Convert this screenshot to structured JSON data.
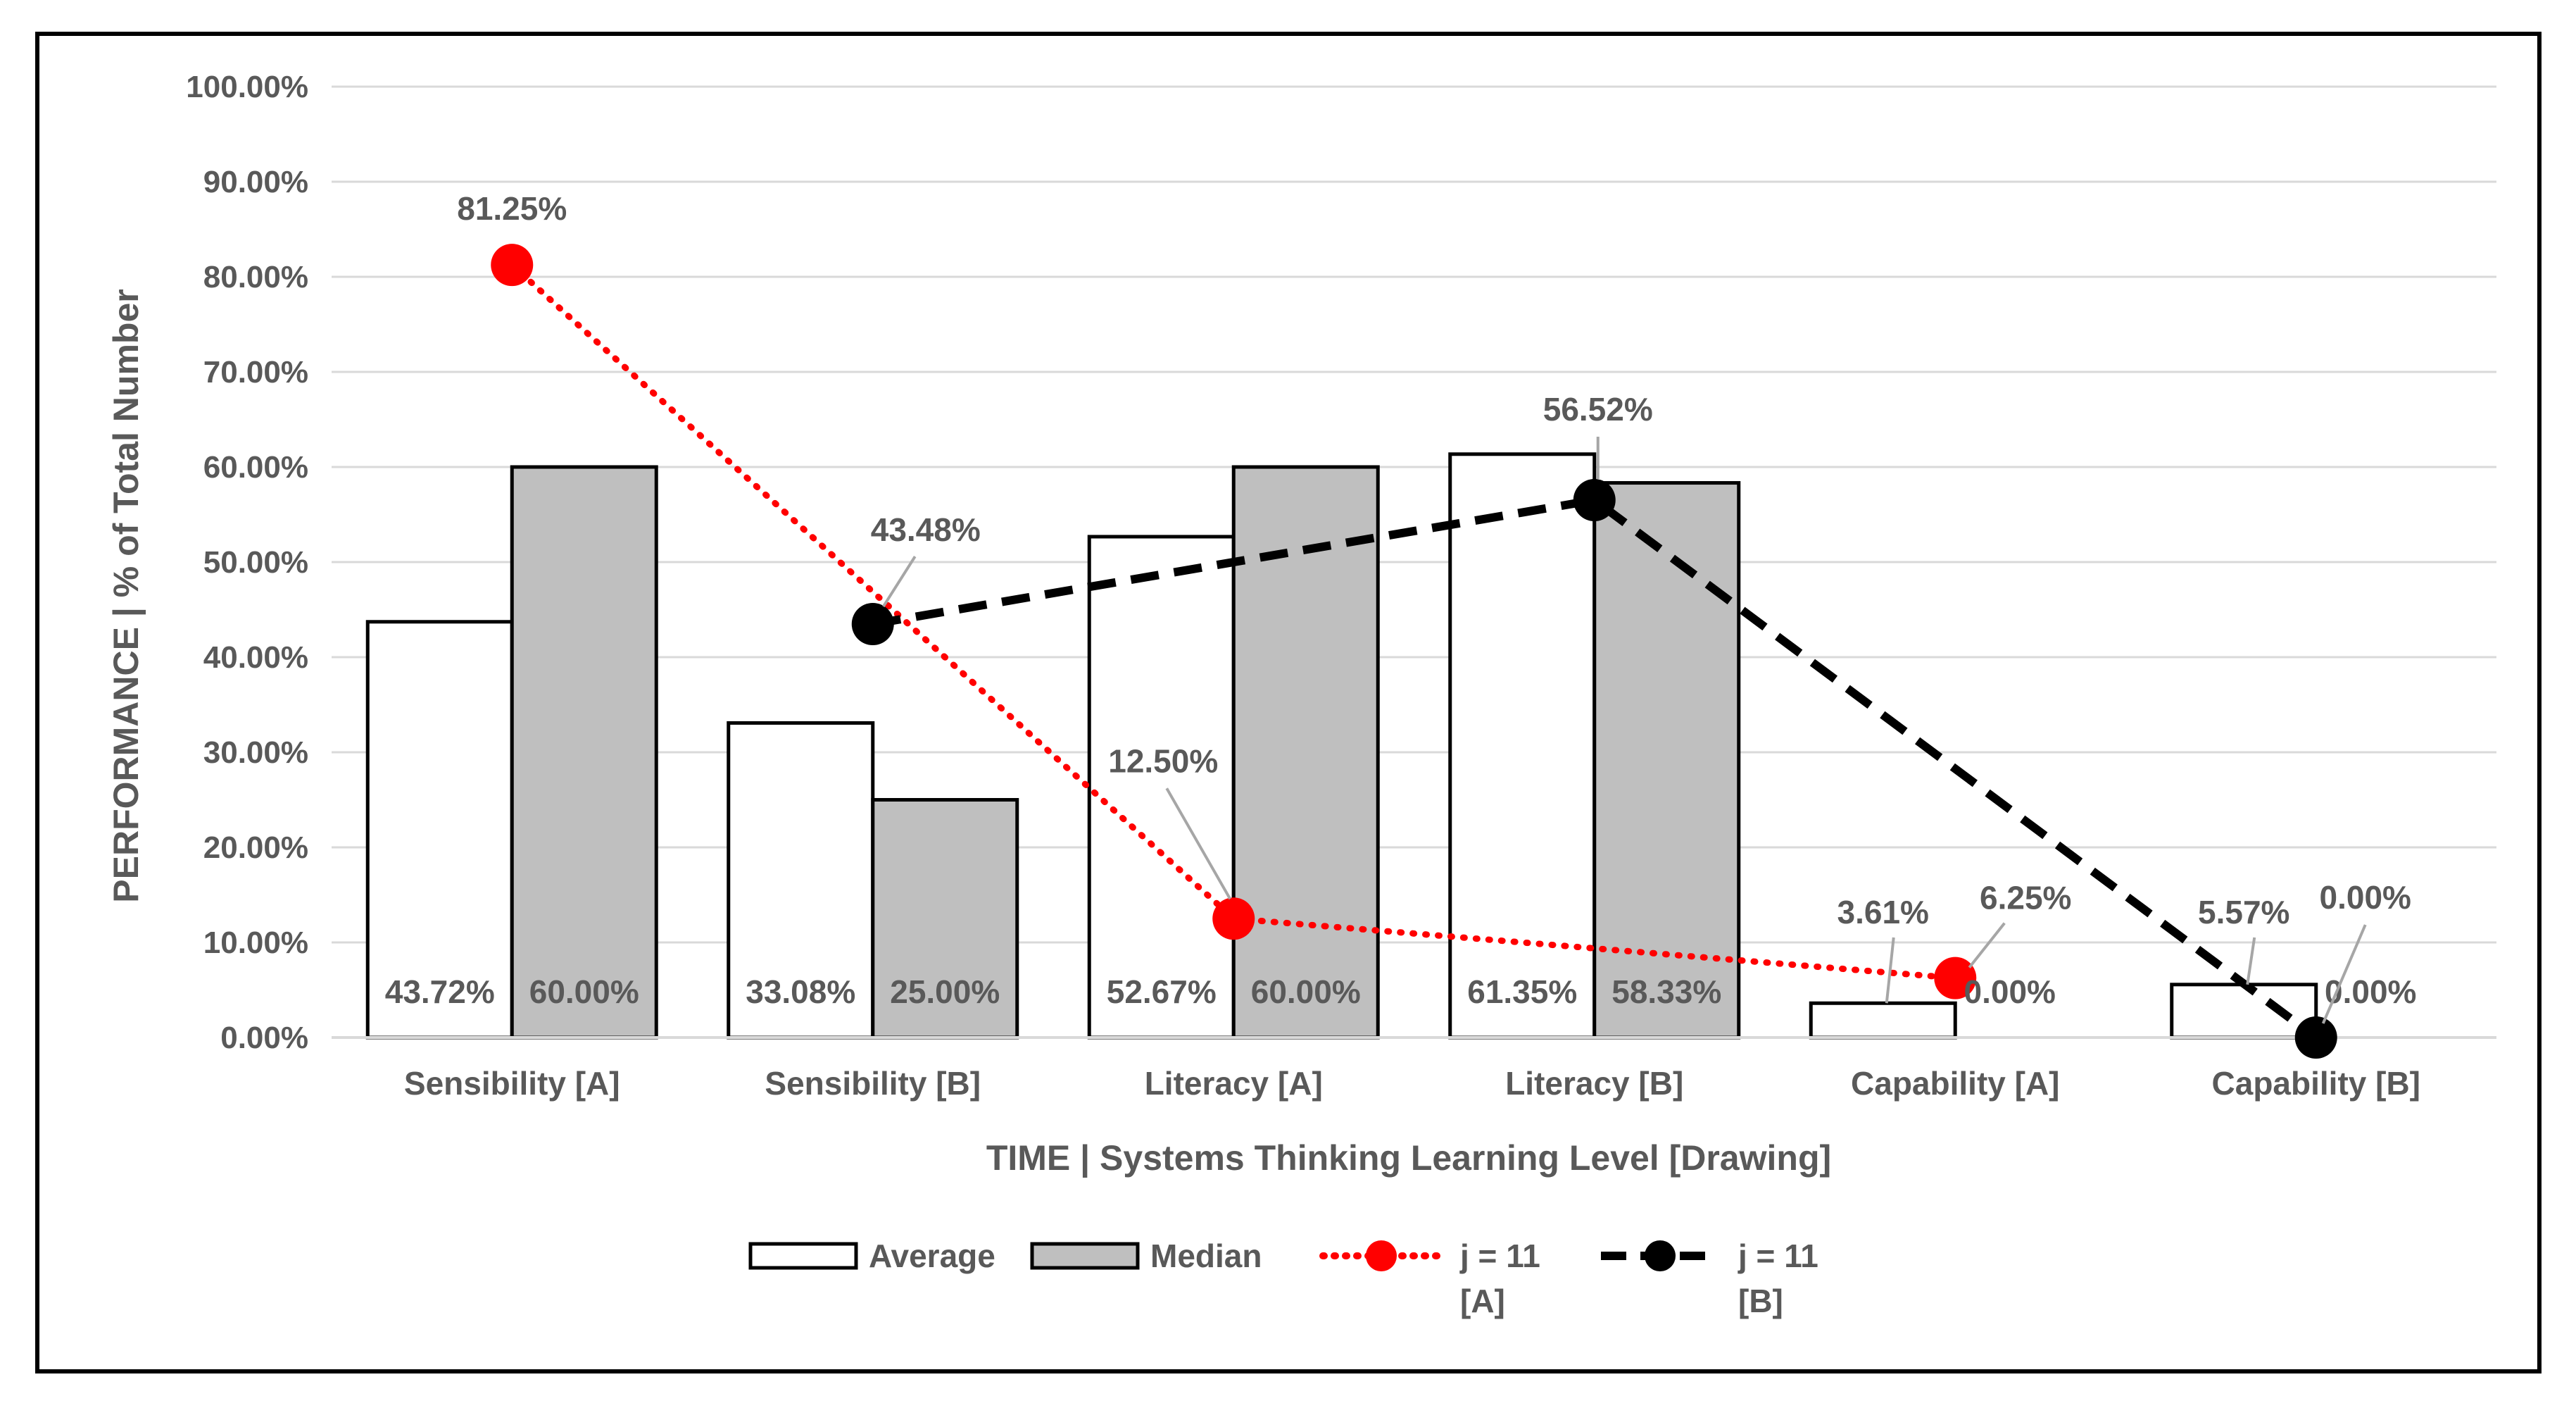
{
  "chart_data": {
    "type": "bar+line",
    "title": "",
    "xlabel": "TIME |  Systems Thinking Learning Level [Drawing]",
    "ylabel": "PERFORMANCE  |  % of Total Number",
    "ylim": [
      0,
      100
    ],
    "yticks": [
      0,
      10,
      20,
      30,
      40,
      50,
      60,
      70,
      80,
      90,
      100
    ],
    "ytick_labels": [
      "0.00%",
      "10.00%",
      "20.00%",
      "30.00%",
      "40.00%",
      "50.00%",
      "60.00%",
      "70.00%",
      "80.00%",
      "90.00%",
      "100.00%"
    ],
    "grid": true,
    "categories": [
      "Sensibility [A]",
      "Sensibility [B]",
      "Literacy [A]",
      "Literacy [B]",
      "Capability [A]",
      "Capability [B]"
    ],
    "bar_series": [
      {
        "name": "Average",
        "values": [
          43.72,
          33.08,
          52.67,
          61.35,
          3.61,
          5.57
        ],
        "labels": [
          "43.72%",
          "33.08%",
          "52.67%",
          "61.35%",
          "3.61%",
          "5.57%"
        ],
        "fill": "#ffffff",
        "stroke": "#000000"
      },
      {
        "name": "Median",
        "values": [
          60.0,
          25.0,
          60.0,
          58.33,
          0.0,
          0.0
        ],
        "labels": [
          "60.00%",
          "25.00%",
          "60.00%",
          "58.33%",
          "0.00%",
          "0.00%"
        ],
        "fill": "#bfbfbf",
        "stroke": "#000000"
      }
    ],
    "line_series": [
      {
        "name": "j = 11 [A]",
        "legend_lines": [
          "j = 11",
          "[A]"
        ],
        "points": [
          {
            "category": "Sensibility [A]",
            "value": 81.25,
            "label": "81.25%"
          },
          {
            "category": "Literacy [A]",
            "value": 12.5,
            "label": "12.50%"
          },
          {
            "category": "Capability [A]",
            "value": 6.25,
            "label": "6.25%"
          }
        ],
        "color": "#ff0000",
        "dash": "dotted"
      },
      {
        "name": "j = 11 [B]",
        "legend_lines": [
          "j = 11",
          "[B]"
        ],
        "points": [
          {
            "category": "Sensibility [B]",
            "value": 43.48,
            "label": "43.48%"
          },
          {
            "category": "Literacy [B]",
            "value": 56.52,
            "label": "56.52%"
          },
          {
            "category": "Capability [B]",
            "value": 0.0,
            "label": "0.00%"
          }
        ],
        "color": "#000000",
        "dash": "dashed"
      }
    ],
    "legend_position": "bottom"
  }
}
